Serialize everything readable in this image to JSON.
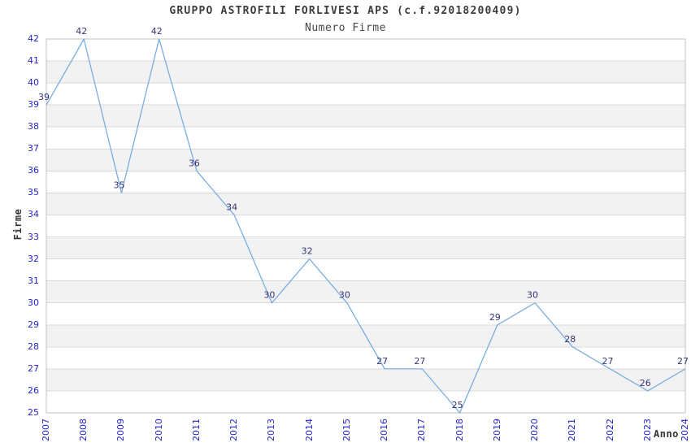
{
  "chart_data": {
    "type": "line",
    "title": "GRUPPO ASTROFILI FORLIVESI APS (c.f.92018200409)",
    "subtitle": "Numero Firme",
    "xlabel": "Anno",
    "ylabel": "Firme",
    "categories": [
      "2007",
      "2008",
      "2009",
      "2010",
      "2011",
      "2012",
      "2013",
      "2014",
      "2015",
      "2016",
      "2017",
      "2018",
      "2019",
      "2020",
      "2021",
      "2022",
      "2023",
      "2024"
    ],
    "values": [
      39,
      42,
      35,
      42,
      36,
      34,
      30,
      32,
      30,
      27,
      27,
      25,
      29,
      30,
      28,
      27,
      26,
      27
    ],
    "ylim": [
      25,
      42
    ],
    "ytick_step": 1,
    "data_labels_visible": true,
    "legend": "none",
    "grid": "horizontal-alternating-bands",
    "style": {
      "line_color": "#7aade0",
      "tick_label_color": "#2424cc",
      "value_label_color": "#333377",
      "band_color": "#f2f2f2",
      "band_alt_color": "#ffffff",
      "grid_color": "#d9d9d9",
      "frame_color": "#c2c2c2",
      "title_color": "#3d3d3d",
      "background": "#ffffff"
    }
  }
}
